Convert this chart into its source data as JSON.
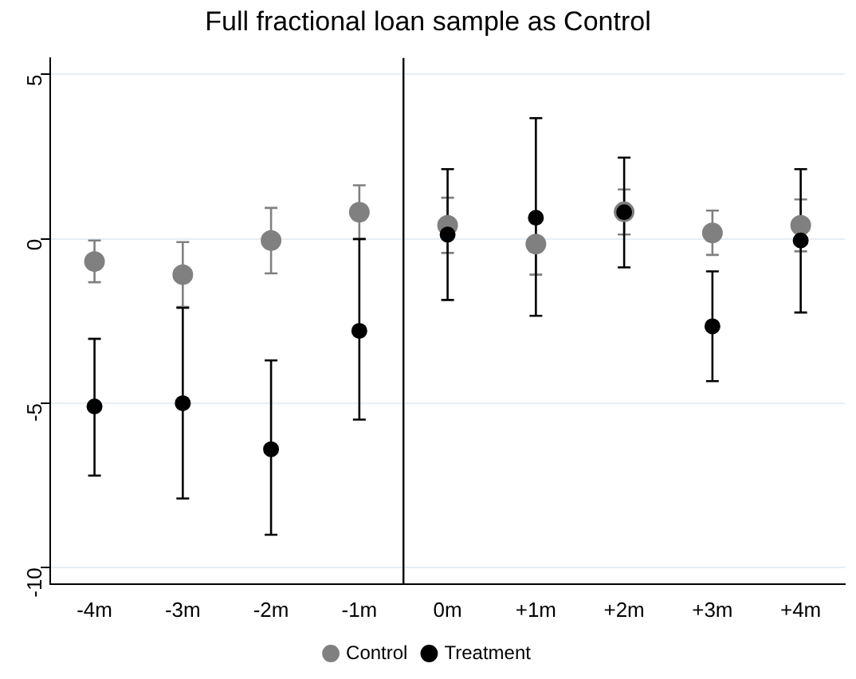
{
  "chart_data": {
    "type": "scatter",
    "title": "Full fractional loan sample as Control",
    "x": [
      -4,
      -3,
      -2,
      -1,
      0,
      1,
      2,
      3,
      4
    ],
    "xlim": [
      -4.5,
      4.5
    ],
    "xticks": [
      {
        "value": -4,
        "label": "-4m"
      },
      {
        "value": -3,
        "label": "-3m"
      },
      {
        "value": -2,
        "label": "-2m"
      },
      {
        "value": -1,
        "label": "-1m"
      },
      {
        "value": 0,
        "label": "0m"
      },
      {
        "value": 1,
        "label": "+1m"
      },
      {
        "value": 2,
        "label": "+2m"
      },
      {
        "value": 3,
        "label": "+3m"
      },
      {
        "value": 4,
        "label": "+4m"
      }
    ],
    "ylim": [
      -10.5,
      5.5
    ],
    "yticks": [
      -10,
      -5,
      0,
      5
    ],
    "series": [
      {
        "name": "Control",
        "color": "#808080",
        "values": [
          -0.69,
          -1.09,
          -0.05,
          0.81,
          0.41,
          -0.16,
          0.82,
          0.18,
          0.41
        ],
        "errors": [
          [
            -1.32,
            -0.05
          ],
          [
            -2.07,
            -0.1
          ],
          [
            -1.05,
            0.94
          ],
          [
            -0.02,
            1.63
          ],
          [
            -0.43,
            1.25
          ],
          [
            -1.09,
            0.72
          ],
          [
            0.13,
            1.5
          ],
          [
            -0.49,
            0.86
          ],
          [
            -0.38,
            1.2
          ]
        ]
      },
      {
        "name": "Treatment",
        "color": "#000000",
        "values": [
          -5.1,
          -5.0,
          -6.4,
          -2.8,
          0.13,
          0.64,
          0.81,
          -2.66,
          -0.05
        ],
        "errors": [
          [
            -7.2,
            -3.04
          ],
          [
            -7.9,
            -2.1
          ],
          [
            -9.0,
            -3.7
          ],
          [
            -5.5,
            0
          ],
          [
            -1.86,
            2.12
          ],
          [
            -2.34,
            3.67
          ],
          [
            -0.87,
            2.47
          ],
          [
            -4.33,
            -0.99
          ],
          [
            -2.24,
            2.12
          ]
        ]
      }
    ],
    "ref_lines": [
      {
        "axis": "x",
        "value": -0.5,
        "color": "#000000"
      }
    ],
    "marker": "circle",
    "grid": "y",
    "legend": "bottom"
  }
}
